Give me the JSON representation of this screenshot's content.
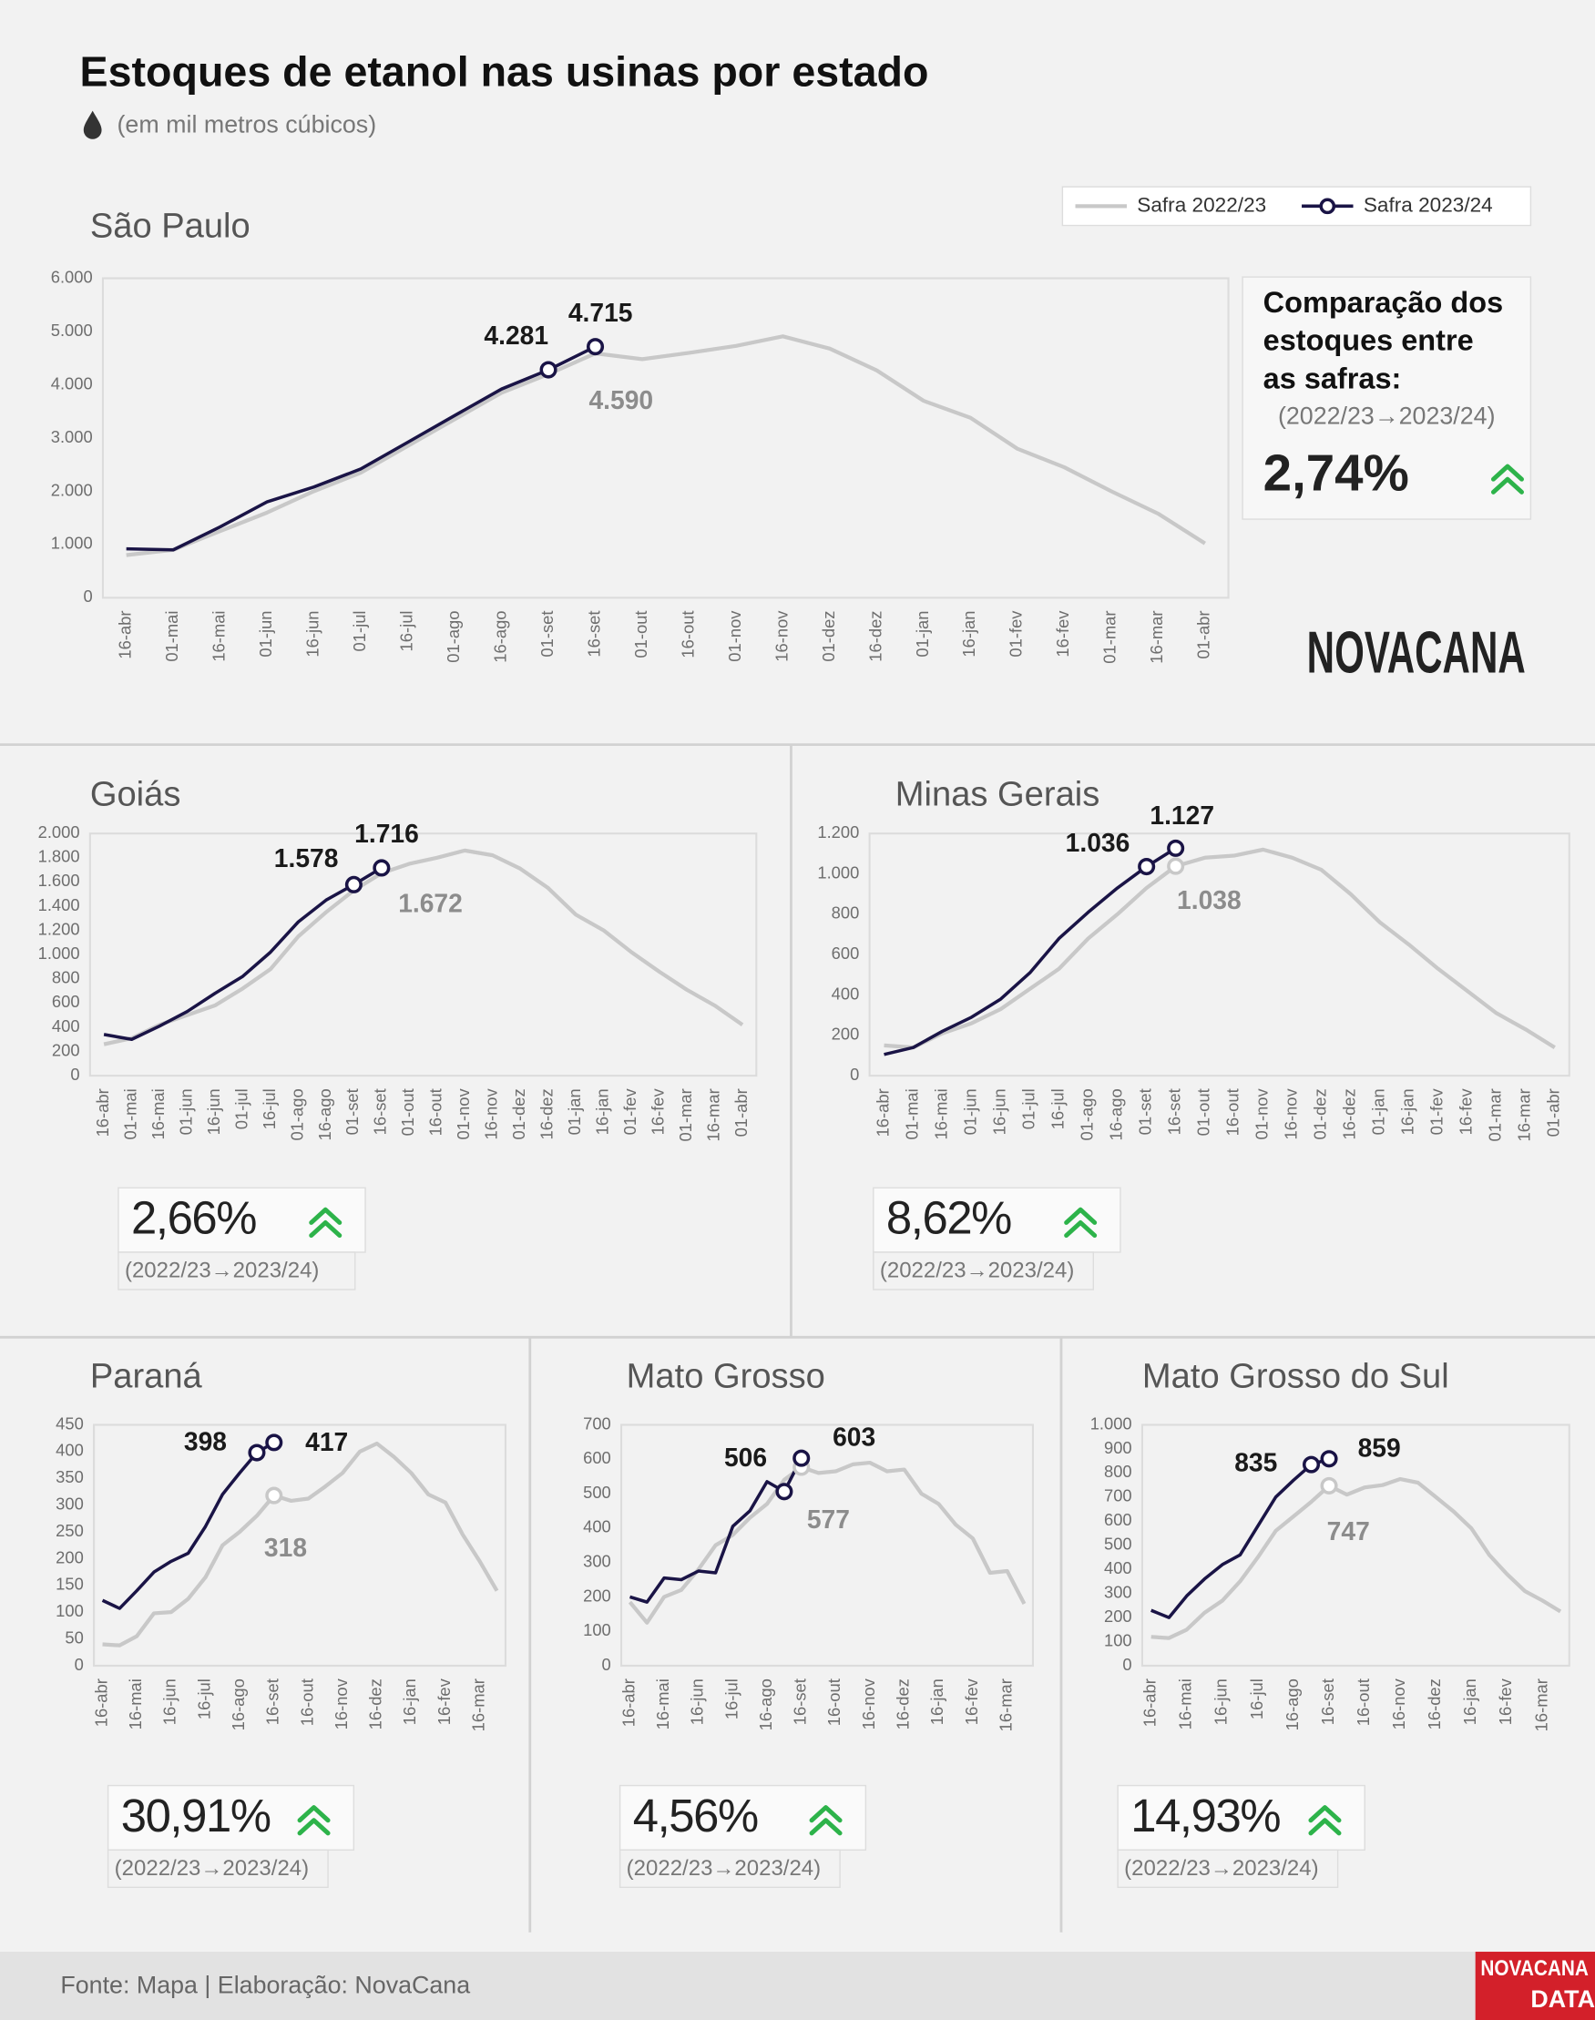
{
  "title": "Estoques de etanol nas usinas por estado",
  "subtitle": "(em mil metros cúbicos)",
  "source": "Fonte: Mapa | Elaboração: NovaCana",
  "logo": "NOVACANA",
  "footer_logo": [
    "NOVACANA",
    "DATA"
  ],
  "chart_data": [
    {
      "type": "line",
      "title": "São Paulo",
      "categories": [
        "16-abr",
        "01-mai",
        "16-mai",
        "01-jun",
        "16-jun",
        "01-jul",
        "16-jul",
        "01-ago",
        "16-ago",
        "01-set",
        "16-set",
        "01-out",
        "16-out",
        "01-nov",
        "16-nov",
        "01-dez",
        "16-dez",
        "01-jan",
        "16-jan",
        "01-fev",
        "16-fev",
        "01-mar",
        "16-mar",
        "01-abr"
      ],
      "series": [
        {
          "name": "Safra 2022/23",
          "color": "#c8c8c8",
          "values": [
            800,
            900,
            1250,
            1600,
            2000,
            2350,
            2850,
            3350,
            3850,
            4200,
            4590,
            4480,
            4600,
            4730,
            4910,
            4680,
            4270,
            3700,
            3380,
            2800,
            2450,
            2000,
            1580,
            1020
          ],
          "value_labels": [
            null,
            null,
            null,
            null,
            null,
            null,
            null,
            null,
            null,
            null,
            "4.590",
            null,
            null,
            null,
            null,
            null,
            null,
            null,
            null,
            null,
            null,
            null,
            null,
            null
          ]
        },
        {
          "name": "Safra 2023/24",
          "color": "#1a1446",
          "values": [
            920,
            900,
            1330,
            1800,
            2080,
            2420,
            2920,
            3420,
            3920,
            4281,
            4715,
            null,
            null,
            null,
            null,
            null,
            null,
            null,
            null,
            null,
            null,
            null,
            null,
            null
          ],
          "value_labels": [
            null,
            null,
            null,
            null,
            null,
            null,
            null,
            null,
            null,
            "4.281",
            "4.715",
            null,
            null,
            null,
            null,
            null,
            null,
            null,
            null,
            null,
            null,
            null,
            null,
            null
          ]
        }
      ],
      "ylim": [
        0,
        6000
      ],
      "yticks": [
        0,
        {
          "value": 1000,
          "label": "1.000"
        },
        {
          "value": 2000,
          "label": "2.000"
        },
        {
          "value": 3000,
          "label": "3.000"
        },
        {
          "value": 4000,
          "label": "4.000"
        },
        {
          "value": 5000,
          "label": "5.000"
        },
        {
          "value": 6000,
          "label": "6.000"
        }
      ],
      "comparison": {
        "heading": "Comparação dos estoques entre as safras:",
        "period": "(2022/23→2023/24)",
        "value": "2,74%"
      }
    },
    {
      "type": "line",
      "title": "Goiás",
      "categories": [
        "16-abr",
        "01-mai",
        "16-mai",
        "01-jun",
        "16-jun",
        "01-jul",
        "16-jul",
        "01-ago",
        "16-ago",
        "01-set",
        "16-set",
        "01-out",
        "16-out",
        "01-nov",
        "16-nov",
        "01-dez",
        "16-dez",
        "01-jan",
        "16-jan",
        "01-fev",
        "16-fev",
        "01-mar",
        "16-mar",
        "01-abr"
      ],
      "series": [
        {
          "color": "#c8c8c8",
          "values": [
            260,
            310,
            420,
            500,
            580,
            720,
            880,
            1150,
            1350,
            1530,
            1672,
            1750,
            1800,
            1860,
            1820,
            1710,
            1550,
            1330,
            1200,
            1020,
            860,
            710,
            580,
            420
          ],
          "value_labels": [
            null,
            null,
            null,
            null,
            null,
            null,
            null,
            null,
            null,
            null,
            "1.672",
            null,
            null,
            null,
            null,
            null,
            null,
            null,
            null,
            null,
            null,
            null,
            null,
            null
          ]
        },
        {
          "color": "#1a1446",
          "values": [
            340,
            300,
            410,
            530,
            680,
            820,
            1020,
            1270,
            1450,
            1578,
            1716,
            null,
            null,
            null,
            null,
            null,
            null,
            null,
            null,
            null,
            null,
            null,
            null,
            null
          ],
          "value_labels": [
            null,
            null,
            null,
            null,
            null,
            null,
            null,
            null,
            null,
            "1.578",
            "1.716",
            null,
            null,
            null,
            null,
            null,
            null,
            null,
            null,
            null,
            null,
            null,
            null,
            null
          ]
        }
      ],
      "ylim": [
        0,
        2000
      ],
      "yticks": [
        0,
        200,
        400,
        600,
        800,
        {
          "value": 1000,
          "label": "1.000"
        },
        {
          "value": 1200,
          "label": "1.200"
        },
        {
          "value": 1400,
          "label": "1.400"
        },
        {
          "value": 1600,
          "label": "1.600"
        },
        {
          "value": 1800,
          "label": "1.800"
        },
        {
          "value": 2000,
          "label": "2.000"
        }
      ],
      "comparison": {
        "period": "(2022/23→2023/24)",
        "value": "2,66%"
      }
    },
    {
      "type": "line",
      "title": "Minas Gerais",
      "categories": [
        "16-abr",
        "01-mai",
        "16-mai",
        "01-jun",
        "16-jun",
        "01-jul",
        "16-jul",
        "01-ago",
        "16-ago",
        "01-set",
        "16-set",
        "01-out",
        "16-out",
        "01-nov",
        "16-nov",
        "01-dez",
        "16-dez",
        "01-jan",
        "16-jan",
        "01-fev",
        "16-fev",
        "01-mar",
        "16-mar",
        "01-abr"
      ],
      "series": [
        {
          "color": "#c8c8c8",
          "values": [
            150,
            140,
            210,
            260,
            330,
            430,
            530,
            680,
            800,
            930,
            1038,
            1080,
            1090,
            1120,
            1080,
            1020,
            900,
            760,
            650,
            530,
            420,
            310,
            230,
            140
          ],
          "value_labels": [
            null,
            null,
            null,
            null,
            null,
            null,
            null,
            null,
            null,
            null,
            "1.038",
            null,
            null,
            null,
            null,
            null,
            null,
            null,
            null,
            null,
            null,
            null,
            null,
            null
          ]
        },
        {
          "color": "#1a1446",
          "values": [
            105,
            140,
            220,
            290,
            380,
            510,
            680,
            810,
            930,
            1036,
            1127,
            null,
            null,
            null,
            null,
            null,
            null,
            null,
            null,
            null,
            null,
            null,
            null,
            null
          ],
          "value_labels": [
            null,
            null,
            null,
            null,
            null,
            null,
            null,
            null,
            null,
            "1.036",
            "1.127",
            null,
            null,
            null,
            null,
            null,
            null,
            null,
            null,
            null,
            null,
            null,
            null,
            null
          ]
        }
      ],
      "ylim": [
        0,
        1200
      ],
      "yticks": [
        0,
        200,
        400,
        600,
        800,
        {
          "value": 1000,
          "label": "1.000"
        },
        {
          "value": 1200,
          "label": "1.200"
        }
      ],
      "comparison": {
        "period": "(2022/23→2023/24)",
        "value": "8,62%"
      }
    },
    {
      "type": "line",
      "title": "Paraná",
      "categories": [
        "16-abr",
        null,
        "16-mai",
        null,
        "16-jun",
        null,
        "16-jul",
        null,
        "16-ago",
        null,
        "16-set",
        null,
        "16-out",
        null,
        "16-nov",
        null,
        "16-dez",
        null,
        "16-jan",
        null,
        "16-fev",
        null,
        "16-mar",
        null
      ],
      "series": [
        {
          "color": "#c8c8c8",
          "values": [
            40,
            38,
            55,
            98,
            100,
            125,
            165,
            225,
            250,
            280,
            318,
            308,
            312,
            335,
            360,
            400,
            415,
            390,
            360,
            320,
            305,
            245,
            195,
            140
          ],
          "value_labels": [
            null,
            null,
            null,
            null,
            null,
            null,
            null,
            null,
            null,
            null,
            "318",
            null,
            null,
            null,
            null,
            null,
            null,
            null,
            null,
            null,
            null,
            null,
            null,
            null
          ]
        },
        {
          "color": "#1a1446",
          "values": [
            122,
            107,
            140,
            175,
            195,
            210,
            260,
            320,
            360,
            398,
            417,
            null,
            null,
            null,
            null,
            null,
            null,
            null,
            null,
            null,
            null,
            null,
            null,
            null
          ],
          "value_labels": [
            null,
            null,
            null,
            null,
            null,
            null,
            null,
            null,
            null,
            "398",
            "417",
            null,
            null,
            null,
            null,
            null,
            null,
            null,
            null,
            null,
            null,
            null,
            null,
            null
          ]
        }
      ],
      "ylim": [
        0,
        450
      ],
      "yticks": [
        0,
        50,
        100,
        150,
        200,
        250,
        300,
        350,
        400,
        450
      ],
      "comparison": {
        "period": "(2022/23→2023/24)",
        "value": "30,91%"
      }
    },
    {
      "type": "line",
      "title": "Mato Grosso",
      "categories": [
        "16-abr",
        null,
        "16-mai",
        null,
        "16-jun",
        null,
        "16-jul",
        null,
        "16-ago",
        null,
        "16-set",
        null,
        "16-out",
        null,
        "16-nov",
        null,
        "16-dez",
        null,
        "16-jan",
        null,
        "16-fev",
        null,
        "16-mar",
        null
      ],
      "series": [
        {
          "color": "#c8c8c8",
          "values": [
            185,
            125,
            200,
            220,
            280,
            350,
            380,
            430,
            470,
            540,
            577,
            560,
            565,
            585,
            590,
            565,
            570,
            500,
            470,
            410,
            370,
            270,
            275,
            180
          ],
          "value_labels": [
            null,
            null,
            null,
            null,
            null,
            null,
            null,
            null,
            null,
            null,
            "577",
            null,
            null,
            null,
            null,
            null,
            null,
            null,
            null,
            null,
            null,
            null,
            null,
            null
          ]
        },
        {
          "color": "#1a1446",
          "values": [
            200,
            185,
            255,
            250,
            275,
            270,
            405,
            450,
            535,
            506,
            603,
            null,
            null,
            null,
            null,
            null,
            null,
            null,
            null,
            null,
            null,
            null,
            null,
            null
          ],
          "value_labels": [
            null,
            null,
            null,
            null,
            null,
            null,
            null,
            null,
            null,
            "506",
            "603",
            null,
            null,
            null,
            null,
            null,
            null,
            null,
            null,
            null,
            null,
            null,
            null,
            null
          ]
        }
      ],
      "ylim": [
        0,
        700
      ],
      "yticks": [
        0,
        100,
        200,
        300,
        400,
        500,
        600,
        700
      ],
      "comparison": {
        "period": "(2022/23→2023/24)",
        "value": "4,56%"
      }
    },
    {
      "type": "line",
      "title": "Mato Grosso do Sul",
      "categories": [
        "16-abr",
        null,
        "16-mai",
        null,
        "16-jun",
        null,
        "16-jul",
        null,
        "16-ago",
        null,
        "16-set",
        null,
        "16-out",
        null,
        "16-nov",
        null,
        "16-dez",
        null,
        "16-jan",
        null,
        "16-fev",
        null,
        "16-mar",
        null
      ],
      "series": [
        {
          "color": "#c8c8c8",
          "values": [
            120,
            115,
            150,
            220,
            270,
            350,
            450,
            560,
            620,
            680,
            747,
            710,
            740,
            750,
            775,
            760,
            700,
            640,
            570,
            460,
            380,
            310,
            270,
            225
          ],
          "value_labels": [
            null,
            null,
            null,
            null,
            null,
            null,
            null,
            null,
            null,
            null,
            "747",
            null,
            null,
            null,
            null,
            null,
            null,
            null,
            null,
            null,
            null,
            null,
            null,
            null
          ]
        },
        {
          "color": "#1a1446",
          "values": [
            230,
            200,
            290,
            360,
            420,
            460,
            580,
            700,
            770,
            835,
            859,
            null,
            null,
            null,
            null,
            null,
            null,
            null,
            null,
            null,
            null,
            null,
            null,
            null
          ],
          "value_labels": [
            null,
            null,
            null,
            null,
            null,
            null,
            null,
            null,
            null,
            "835",
            "859",
            null,
            null,
            null,
            null,
            null,
            null,
            null,
            null,
            null,
            null,
            null,
            null,
            null
          ]
        }
      ],
      "ylim": [
        0,
        1000
      ],
      "yticks": [
        0,
        100,
        200,
        300,
        400,
        500,
        600,
        700,
        800,
        900,
        {
          "value": 1000,
          "label": "1.000"
        }
      ],
      "comparison": {
        "period": "(2022/23→2023/24)",
        "value": "14,93%"
      }
    }
  ]
}
